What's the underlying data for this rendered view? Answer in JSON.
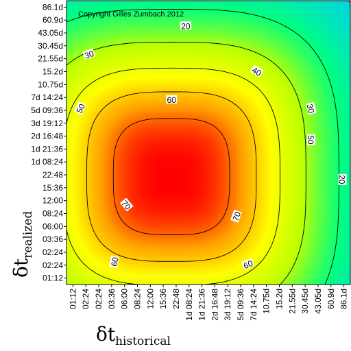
{
  "chart_data": {
    "type": "heatmap",
    "title": "",
    "annotation": "Copyright Gilles Zumbach 2012",
    "xlabel": {
      "symbol": "δt",
      "subscript": "historical"
    },
    "ylabel": {
      "symbol": "δt",
      "subscript": "realized"
    },
    "x_ticks": [
      "01:12",
      "02:24",
      "02:24",
      "03:36",
      "06:00",
      "08:24",
      "12:00",
      "15:36",
      "22:48",
      "1d 08:24",
      "1d 21:36",
      "2d 16:48",
      "3d 19:12",
      "5d 09:36",
      "7d 14:24",
      "10.75d",
      "15.2d",
      "21.55d",
      "30.45d",
      "43.05d",
      "60.9d",
      "86.1d"
    ],
    "y_ticks": [
      "86.1d",
      "60.9d",
      "43.05d",
      "30.45d",
      "21.55d",
      "15.2d",
      "10.75d",
      "7d 14:24",
      "5d 09:36",
      "3d 19:12",
      "2d 16:48",
      "1d 21:36",
      "1d 08:24",
      "22:48",
      "15:36",
      "12:00",
      "08:24",
      "06:00",
      "03:36",
      "02:24",
      "02:24",
      "01:12"
    ],
    "contour_levels": [
      20,
      30,
      40,
      50,
      60,
      70
    ],
    "contour_labels": [
      "20",
      "30",
      "40",
      "50",
      "50",
      "30",
      "50",
      "20",
      "60",
      "70",
      "70",
      "60",
      "60"
    ],
    "colorscale": [
      "#0000ff",
      "#00c8ff",
      "#00ff80",
      "#c0ff00",
      "#ffff00",
      "#ffa000",
      "#ff0000"
    ],
    "value_range": [
      5,
      78
    ],
    "grid": false,
    "legend": "none"
  }
}
